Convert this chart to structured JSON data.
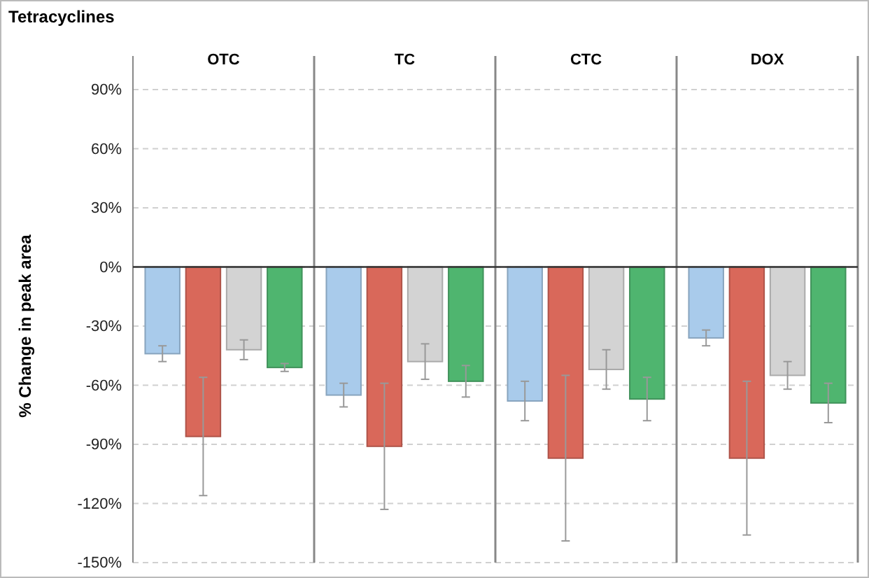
{
  "chart_data": {
    "type": "bar",
    "title": "Tetracyclines",
    "ylabel": "% Change in peak area",
    "categories": [
      "OTC",
      "TC",
      "CTC",
      "DOX"
    ],
    "series": [
      {
        "color": "#a9cbeb",
        "values": [
          -44,
          -65,
          -68,
          -36
        ],
        "errors": [
          4,
          6,
          10,
          4
        ]
      },
      {
        "color": "#d9685a",
        "values": [
          -86,
          -91,
          -97,
          -97
        ],
        "errors": [
          30,
          32,
          42,
          39
        ]
      },
      {
        "color": "#d3d3d3",
        "values": [
          -42,
          -48,
          -52,
          -55
        ],
        "errors": [
          5,
          9,
          10,
          7
        ]
      },
      {
        "color": "#4fb56f",
        "values": [
          -51,
          -58,
          -67,
          -69
        ],
        "errors": [
          2,
          8,
          11,
          10
        ]
      }
    ],
    "ylim": [
      -150,
      90
    ],
    "yticks": [
      {
        "value": -150,
        "label": "-150%"
      },
      {
        "value": -120,
        "label": "-120%"
      },
      {
        "value": -90,
        "label": "-90%"
      },
      {
        "value": -60,
        "label": "-60%"
      },
      {
        "value": -30,
        "label": "-30%"
      },
      {
        "value": 0,
        "label": "0%"
      },
      {
        "value": 30,
        "label": "30%"
      },
      {
        "value": 60,
        "label": "60%"
      },
      {
        "value": 90,
        "label": "90%"
      }
    ],
    "grid": "y"
  }
}
